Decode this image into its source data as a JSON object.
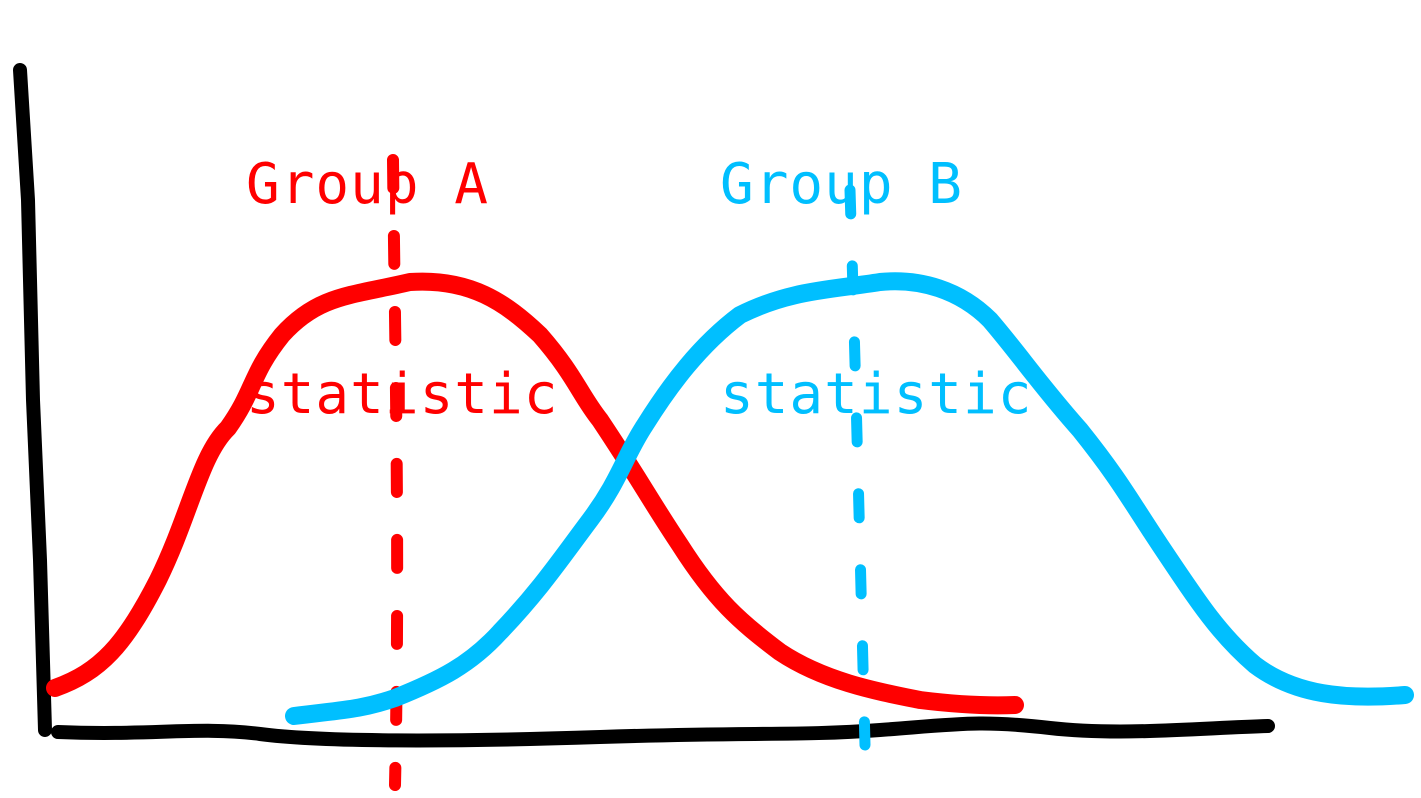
{
  "annotations": {
    "group_a": {
      "line1": "Group A",
      "line2": "statistic",
      "color": "#ff0000"
    },
    "group_b": {
      "line1": "Group B",
      "line2": "statistic",
      "color": "#00bfff"
    }
  },
  "axis_color": "#000000",
  "chart_data": {
    "type": "line",
    "title": "",
    "xlabel": "",
    "ylabel": "",
    "axes_tick_labels": false,
    "grid": false,
    "series": [
      {
        "shape": "bell-curve",
        "color": "#ff0000",
        "marker": "dashed vertical line at peak"
      },
      {
        "shape": "bell-curve",
        "color": "#00bfff",
        "marker": "dashed vertical line at peak"
      }
    ]
  }
}
